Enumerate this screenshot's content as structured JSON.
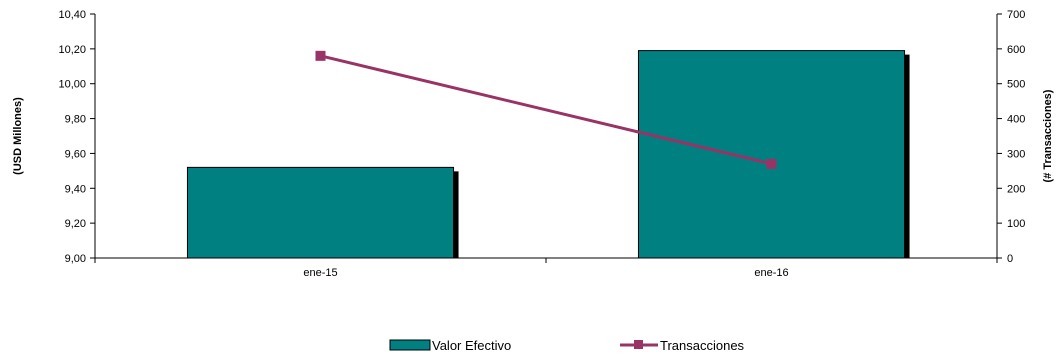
{
  "chart_data": {
    "type": "bar+line",
    "categories": [
      "ene-15",
      "ene-16"
    ],
    "series": [
      {
        "name": "Valor Efectivo",
        "type": "bar",
        "axis": "left",
        "values": [
          9.52,
          10.19
        ],
        "color": "#008080",
        "shadow_color": "#000000"
      },
      {
        "name": "Transacciones",
        "type": "line",
        "axis": "right",
        "values": [
          580,
          270
        ],
        "color": "#993366"
      }
    ],
    "ylabel_left": "(USD Millones)",
    "ylabel_right": "(# Transacciones)",
    "ylim_left": [
      9.0,
      10.4
    ],
    "ylim_right": [
      0,
      700
    ],
    "yticks_left": [
      "9,00",
      "9,20",
      "9,40",
      "9,60",
      "9,80",
      "10,00",
      "10,20",
      "10,40"
    ],
    "yticks_right": [
      "0",
      "100",
      "200",
      "300",
      "400",
      "500",
      "600",
      "700"
    ],
    "grid": false,
    "legend_position": "bottom"
  }
}
